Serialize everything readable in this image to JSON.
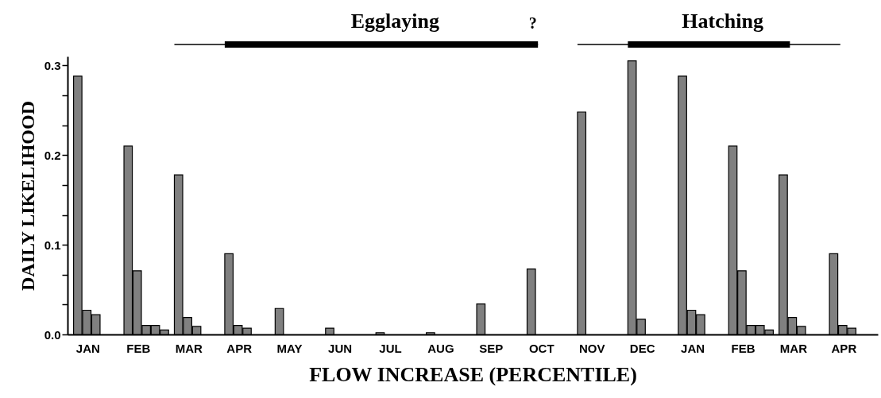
{
  "chart_data": {
    "type": "bar",
    "xlabel": "FLOW INCREASE (PERCENTILE)",
    "ylabel": "DAILY LIKELIHOOD",
    "categories": [
      "JAN",
      "FEB",
      "MAR",
      "APR",
      "MAY",
      "JUN",
      "JUL",
      "AUG",
      "SEP",
      "OCT",
      "NOV",
      "DEC",
      "JAN",
      "FEB",
      "MAR",
      "APR"
    ],
    "series": [
      {
        "color": "#808080",
        "values": [
          0.288,
          0.21,
          0.178,
          0.09,
          0.029,
          0.007,
          0.002,
          0.002,
          0.034,
          0.073,
          0.248,
          0.305,
          0.288,
          0.21,
          0.178,
          0.09
        ]
      },
      {
        "color": "#808080",
        "values": [
          0.027,
          0.071,
          0.019,
          0.01,
          null,
          null,
          null,
          null,
          null,
          null,
          null,
          0.017,
          0.027,
          0.071,
          0.019,
          0.01
        ]
      },
      {
        "color": "#808080",
        "values": [
          0.022,
          0.01,
          0.009,
          0.007,
          null,
          null,
          null,
          null,
          null,
          null,
          null,
          null,
          0.022,
          0.01,
          0.009,
          0.007
        ]
      },
      {
        "color": "#808080",
        "values": [
          null,
          0.01,
          null,
          null,
          null,
          null,
          null,
          null,
          null,
          null,
          null,
          null,
          null,
          0.01,
          null,
          null
        ]
      },
      {
        "color": "#808080",
        "values": [
          null,
          0.005,
          null,
          null,
          null,
          null,
          null,
          null,
          null,
          null,
          null,
          null,
          null,
          0.005,
          null,
          null
        ]
      }
    ],
    "ylim": [
      0,
      0.31
    ],
    "yticks": [
      {
        "value": 0,
        "label": "0.0"
      },
      {
        "value": 0.0333,
        "label": null
      },
      {
        "value": 0.0667,
        "label": null
      },
      0.1,
      {
        "value": 0.1333,
        "label": null
      },
      {
        "value": 0.1667,
        "label": null
      },
      0.2,
      {
        "value": 0.2333,
        "label": null
      },
      {
        "value": 0.2667,
        "label": null
      },
      0.3
    ],
    "annotations": [
      "Egglaying",
      "?",
      "Hatching"
    ],
    "grid": false,
    "legend": false
  }
}
